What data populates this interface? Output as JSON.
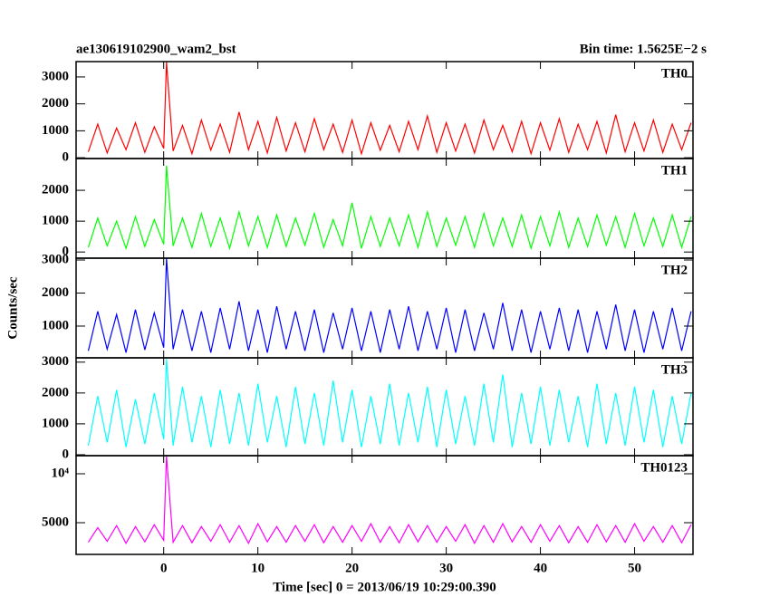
{
  "chart_data": [
    {
      "type": "line",
      "title": "ae130619102900_wam2_bst",
      "subtitle": "Bin time: 1.5625E−2 s",
      "x": [
        -8,
        -7,
        -6,
        -5,
        -4,
        -3,
        -2,
        -1,
        0,
        0.3,
        1,
        2,
        3,
        4,
        5,
        6,
        7,
        8,
        9,
        10,
        11,
        12,
        13,
        14,
        15,
        16,
        17,
        18,
        19,
        20,
        21,
        22,
        23,
        24,
        25,
        26,
        27,
        28,
        29,
        30,
        31,
        32,
        33,
        34,
        35,
        36,
        37,
        38,
        39,
        40,
        41,
        42,
        43,
        44,
        45,
        46,
        47,
        48,
        49,
        50,
        51,
        52,
        53,
        54,
        55,
        56
      ],
      "series": [
        {
          "name": "TH0",
          "color": "#ff0000",
          "values": [
            220,
            1250,
            180,
            1100,
            300,
            1300,
            200,
            1150,
            350,
            3550,
            250,
            1200,
            150,
            1400,
            280,
            1250,
            200,
            1700,
            300,
            1350,
            180,
            1500,
            250,
            1300,
            220,
            1450,
            300,
            1250,
            200,
            1400,
            150,
            1300,
            280,
            1200,
            220,
            1350,
            300,
            1550,
            200,
            1300,
            250,
            1250,
            180,
            1400,
            300,
            1200,
            220,
            1350,
            150,
            1300,
            280,
            1450,
            200,
            1250,
            300,
            1350,
            180,
            1600,
            220,
            1300,
            250,
            1400,
            200,
            1250,
            300,
            1300
          ]
        }
      ],
      "xlim": [
        -9.3,
        56.2
      ],
      "xticks": [
        0,
        10,
        20,
        30,
        40,
        50
      ],
      "ylim": [
        -30,
        3570
      ],
      "yticks": [
        0,
        1000,
        2000,
        3000
      ]
    },
    {
      "type": "line",
      "x": [
        -8,
        -7,
        -6,
        -5,
        -4,
        -3,
        -2,
        -1,
        0,
        0.3,
        1,
        2,
        3,
        4,
        5,
        6,
        7,
        8,
        9,
        10,
        11,
        12,
        13,
        14,
        15,
        16,
        17,
        18,
        19,
        20,
        21,
        22,
        23,
        24,
        25,
        26,
        27,
        28,
        29,
        30,
        31,
        32,
        33,
        34,
        35,
        36,
        37,
        38,
        39,
        40,
        41,
        42,
        43,
        44,
        45,
        46,
        47,
        48,
        49,
        50,
        51,
        52,
        53,
        54,
        55,
        56
      ],
      "series": [
        {
          "name": "TH1",
          "color": "#00ff00",
          "values": [
            150,
            1100,
            200,
            1000,
            120,
            1150,
            180,
            1050,
            250,
            2800,
            200,
            1100,
            150,
            1250,
            180,
            1100,
            120,
            1300,
            200,
            1150,
            150,
            1200,
            180,
            1100,
            220,
            1250,
            150,
            1050,
            200,
            1600,
            120,
            1150,
            180,
            1100,
            200,
            1200,
            150,
            1300,
            180,
            1100,
            220,
            1150,
            150,
            1250,
            200,
            1100,
            180,
            1200,
            120,
            1150,
            200,
            1300,
            150,
            1100,
            180,
            1200,
            220,
            1150,
            150,
            1250,
            200,
            1100,
            180,
            1200,
            150,
            1150
          ]
        }
      ],
      "xlim": [
        -9.3,
        56.2
      ],
      "xticks": [
        0,
        10,
        20,
        30,
        40,
        50
      ],
      "ylim": [
        -200,
        3030
      ],
      "yticks": [
        0,
        1000,
        2000
      ]
    },
    {
      "type": "line",
      "ylabel": "Counts/sec",
      "x": [
        -8,
        -7,
        -6,
        -5,
        -4,
        -3,
        -2,
        -1,
        0,
        0.3,
        1,
        2,
        3,
        4,
        5,
        6,
        7,
        8,
        9,
        10,
        11,
        12,
        13,
        14,
        15,
        16,
        17,
        18,
        19,
        20,
        21,
        22,
        23,
        24,
        25,
        26,
        27,
        28,
        29,
        30,
        31,
        32,
        33,
        34,
        35,
        36,
        37,
        38,
        39,
        40,
        41,
        42,
        43,
        44,
        45,
        46,
        47,
        48,
        49,
        50,
        51,
        52,
        53,
        54,
        55,
        56
      ],
      "series": [
        {
          "name": "TH2",
          "color": "#0000ff",
          "values": [
            250,
            1450,
            300,
            1350,
            200,
            1500,
            280,
            1400,
            350,
            3050,
            300,
            1500,
            250,
            1450,
            200,
            1550,
            300,
            1750,
            250,
            1500,
            200,
            1600,
            300,
            1450,
            250,
            1500,
            200,
            1400,
            300,
            1550,
            250,
            1450,
            200,
            1500,
            300,
            1600,
            250,
            1450,
            300,
            1550,
            200,
            1500,
            250,
            1400,
            300,
            1700,
            250,
            1500,
            200,
            1450,
            300,
            1550,
            250,
            1500,
            200,
            1450,
            300,
            1650,
            250,
            1500,
            200,
            1450,
            300,
            1550,
            250,
            1450
          ]
        }
      ],
      "xlim": [
        -9.3,
        56.2
      ],
      "xticks": [
        0,
        10,
        20,
        30,
        40,
        50
      ],
      "ylim": [
        40,
        3055
      ],
      "yticks": [
        1000,
        2000,
        3000
      ]
    },
    {
      "type": "line",
      "x": [
        -8,
        -7,
        -6,
        -5,
        -4,
        -3,
        -2,
        -1,
        0,
        0.3,
        1,
        2,
        3,
        4,
        5,
        6,
        7,
        8,
        9,
        10,
        11,
        12,
        13,
        14,
        15,
        16,
        17,
        18,
        19,
        20,
        21,
        22,
        23,
        24,
        25,
        26,
        27,
        28,
        29,
        30,
        31,
        32,
        33,
        34,
        35,
        36,
        37,
        38,
        39,
        40,
        41,
        42,
        43,
        44,
        45,
        46,
        47,
        48,
        49,
        50,
        51,
        52,
        53,
        54,
        55,
        56
      ],
      "series": [
        {
          "name": "TH3",
          "color": "#00ffff",
          "values": [
            300,
            1900,
            400,
            2100,
            250,
            1800,
            350,
            2000,
            500,
            3100,
            300,
            2200,
            400,
            1900,
            250,
            2100,
            350,
            2000,
            300,
            2300,
            400,
            1900,
            250,
            2200,
            350,
            2000,
            300,
            2400,
            400,
            2100,
            250,
            1900,
            350,
            2300,
            300,
            2000,
            400,
            2200,
            250,
            2100,
            350,
            1900,
            300,
            2300,
            400,
            2600,
            250,
            2000,
            350,
            2200,
            300,
            2100,
            400,
            1900,
            250,
            2300,
            350,
            2000,
            300,
            2200,
            400,
            2100,
            250,
            1900,
            350,
            2000
          ]
        }
      ],
      "xlim": [
        -9.3,
        56.2
      ],
      "xticks": [
        0,
        10,
        20,
        30,
        40,
        50
      ],
      "ylim": [
        -30,
        3140
      ],
      "yticks": [
        0,
        1000,
        2000,
        3000
      ]
    },
    {
      "type": "line",
      "xlabel": "Time [sec] 0 = 2013/06/19 10:29:00.390",
      "x": [
        -8,
        -7,
        -6,
        -5,
        -4,
        -3,
        -2,
        -1,
        0,
        0.3,
        1,
        2,
        3,
        4,
        5,
        6,
        7,
        8,
        9,
        10,
        11,
        12,
        13,
        14,
        15,
        16,
        17,
        18,
        19,
        20,
        21,
        22,
        23,
        24,
        25,
        26,
        27,
        28,
        29,
        30,
        31,
        32,
        33,
        34,
        35,
        36,
        37,
        38,
        39,
        40,
        41,
        42,
        43,
        44,
        45,
        46,
        47,
        48,
        49,
        50,
        51,
        52,
        53,
        54,
        55,
        56
      ],
      "series": [
        {
          "name": "TH0123",
          "color": "#ff00ff",
          "values": [
            3000,
            4500,
            3100,
            4700,
            2900,
            4600,
            3050,
            4800,
            3200,
            11800,
            3000,
            4700,
            2950,
            4600,
            3100,
            4800,
            3000,
            4700,
            2900,
            4900,
            3050,
            4600,
            3000,
            4700,
            3100,
            4800,
            2950,
            4600,
            3000,
            4700,
            3100,
            4900,
            3000,
            4600,
            2950,
            4800,
            3050,
            4700,
            3000,
            4600,
            3100,
            4800,
            2900,
            4700,
            3000,
            4900,
            3050,
            4600,
            3000,
            4800,
            3100,
            4700,
            2950,
            4600,
            3000,
            4800,
            3050,
            4700,
            3000,
            4900,
            3100,
            4600,
            3000,
            4700,
            2950,
            4800
          ]
        }
      ],
      "xlim": [
        -9.3,
        56.2
      ],
      "xticks": [
        0,
        10,
        20,
        30,
        40,
        50
      ],
      "ylim": [
        1760,
        11850
      ],
      "yticks": [
        5000,
        {
          "value": 10000,
          "label": "10⁴"
        }
      ]
    }
  ]
}
